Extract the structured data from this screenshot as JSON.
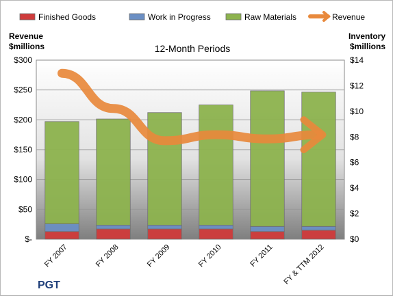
{
  "chart_data": {
    "type": "bar",
    "stacked": true,
    "title": "12-Month Periods",
    "company": "PGT",
    "left_axis_label": [
      "Revenue",
      "$millions"
    ],
    "right_axis_label": [
      "Inventory",
      "$millions"
    ],
    "left_ylim": [
      0,
      300
    ],
    "right_ylim": [
      0,
      14
    ],
    "left_ticks": [
      "$-",
      "$50",
      "$100",
      "$150",
      "$200",
      "$250",
      "$300"
    ],
    "right_ticks": [
      "$0",
      "$2",
      "$4",
      "$6",
      "$8",
      "$10",
      "$12",
      "$14"
    ],
    "categories": [
      "FY 2007",
      "FY 2008",
      "FY 2009",
      "FY 2010",
      "FY 2011",
      "FY & TTM 2012"
    ],
    "series": [
      {
        "name": "Finished Goods",
        "axis": "right",
        "color": "#cf3b3b",
        "values": [
          0.6,
          0.8,
          0.8,
          0.8,
          0.6,
          0.7
        ]
      },
      {
        "name": "Work in Progress",
        "axis": "right",
        "color": "#6b8fc4",
        "values": [
          0.6,
          0.3,
          0.3,
          0.3,
          0.4,
          0.3
        ]
      },
      {
        "name": "Raw Materials",
        "axis": "right",
        "color": "#8db34e",
        "values": [
          8.0,
          8.3,
          8.8,
          9.4,
          10.6,
          10.5
        ]
      },
      {
        "name": "Revenue",
        "axis": "left",
        "type": "line",
        "color": "#e8893c",
        "values": [
          278,
          219,
          165,
          175,
          168,
          175
        ]
      }
    ],
    "grid": true,
    "legend_position": "top"
  }
}
